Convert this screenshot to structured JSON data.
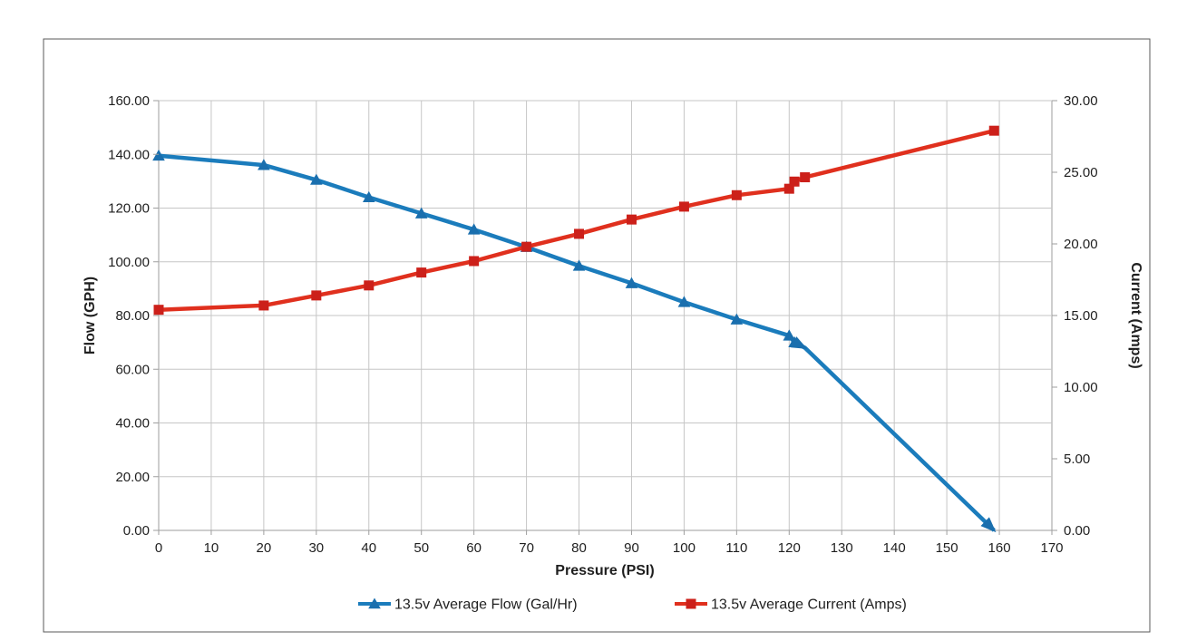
{
  "chart_data": {
    "type": "line",
    "title": "",
    "xlabel": "Pressure (PSI)",
    "ylabel_left": "Flow (GPH)",
    "ylabel_right": "Current (Amps)",
    "xlim": [
      0,
      170
    ],
    "x_tick_step": 10,
    "x_tick_labels": [
      "0",
      "10",
      "20",
      "30",
      "40",
      "50",
      "60",
      "70",
      "80",
      "90",
      "100",
      "110",
      "120",
      "130",
      "140",
      "150",
      "160",
      "170"
    ],
    "ylim_left": [
      0,
      160
    ],
    "y_left_tick_step": 20,
    "y_left_tick_labels": [
      "0.00",
      "20.00",
      "40.00",
      "60.00",
      "80.00",
      "100.00",
      "120.00",
      "140.00",
      "160.00"
    ],
    "ylim_right": [
      0,
      30
    ],
    "y_right_tick_step": 5,
    "y_right_tick_labels": [
      "0.00",
      "5.00",
      "10.00",
      "15.00",
      "20.00",
      "25.00",
      "30.00"
    ],
    "grid": true,
    "legend_position": "bottom",
    "series": [
      {
        "name": "13.5v Average Flow (Gal/Hr)",
        "axis": "left",
        "color": "#1b7cbc",
        "marker_color": "#1a6fae",
        "marker": "triangle",
        "points": [
          {
            "x": 0,
            "y": 139.5
          },
          {
            "x": 20,
            "y": 136.0
          },
          {
            "x": 30,
            "y": 130.5
          },
          {
            "x": 40,
            "y": 124.0
          },
          {
            "x": 50,
            "y": 118.0
          },
          {
            "x": 60,
            "y": 112.0
          },
          {
            "x": 70,
            "y": 105.5
          },
          {
            "x": 80,
            "y": 98.5
          },
          {
            "x": 90,
            "y": 92.0
          },
          {
            "x": 100,
            "y": 85.0
          },
          {
            "x": 110,
            "y": 78.5
          },
          {
            "x": 120,
            "y": 72.5
          },
          {
            "x": 121,
            "y": 70.0
          },
          {
            "x": 123,
            "y": 68.0,
            "marker": "arrow"
          },
          {
            "x": 159,
            "y": 0.0,
            "marker": "arrow"
          }
        ]
      },
      {
        "name": "13.5v Average Current (Amps)",
        "axis": "right",
        "color": "#e0301e",
        "marker_color": "#cc201a",
        "marker": "square",
        "points": [
          {
            "x": 0,
            "y": 15.4
          },
          {
            "x": 20,
            "y": 15.7
          },
          {
            "x": 30,
            "y": 16.4
          },
          {
            "x": 40,
            "y": 17.1
          },
          {
            "x": 50,
            "y": 18.0
          },
          {
            "x": 60,
            "y": 18.8
          },
          {
            "x": 70,
            "y": 19.8
          },
          {
            "x": 80,
            "y": 20.7
          },
          {
            "x": 90,
            "y": 21.7
          },
          {
            "x": 100,
            "y": 22.6
          },
          {
            "x": 110,
            "y": 23.4
          },
          {
            "x": 120,
            "y": 23.85
          },
          {
            "x": 121,
            "y": 24.35
          },
          {
            "x": 123,
            "y": 24.65
          },
          {
            "x": 159,
            "y": 27.9
          }
        ]
      }
    ]
  },
  "colors": {
    "background": "#ffffff",
    "chart_border": "#595959",
    "gridline": "#c6c6c6",
    "axis_line": "#9e9e9e",
    "label_text": "#1f1f1f",
    "flow_line": "#1b7cbc",
    "current_line": "#e0301e"
  }
}
